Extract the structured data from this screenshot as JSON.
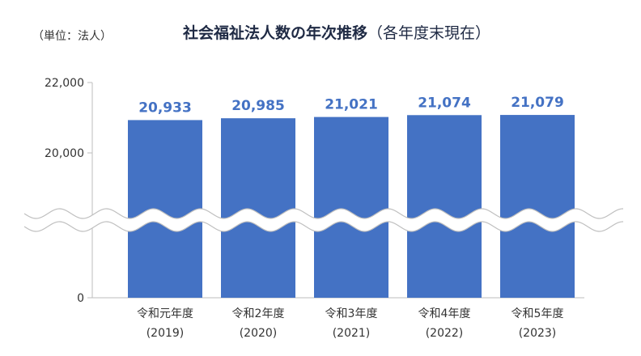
{
  "chart_data": {
    "type": "bar",
    "title": "社会福祉法人数の年次推移",
    "subtitle": "（各年度末現在）",
    "unit_label": "（単位：法人）",
    "categories": [
      {
        "line1": "令和元年度",
        "line2": "(2019)"
      },
      {
        "line1": "令和2年度",
        "line2": "(2020)"
      },
      {
        "line1": "令和3年度",
        "line2": "(2021)"
      },
      {
        "line1": "令和4年度",
        "line2": "(2022)"
      },
      {
        "line1": "令和5年度",
        "line2": "(2023)"
      }
    ],
    "values": [
      20933,
      20985,
      21021,
      21074,
      21079
    ],
    "value_labels": [
      "20,933",
      "20,985",
      "21,021",
      "21,074",
      "21,079"
    ],
    "y_ticks": [
      {
        "value": 22000,
        "label": "22,000"
      },
      {
        "value": 20000,
        "label": "20,000"
      },
      {
        "value": 0,
        "label": "0"
      }
    ],
    "ylim": [
      0,
      22000
    ],
    "axis_break": true,
    "grid": false,
    "bar_color": "#4472c4",
    "label_color": "#4472c4"
  }
}
